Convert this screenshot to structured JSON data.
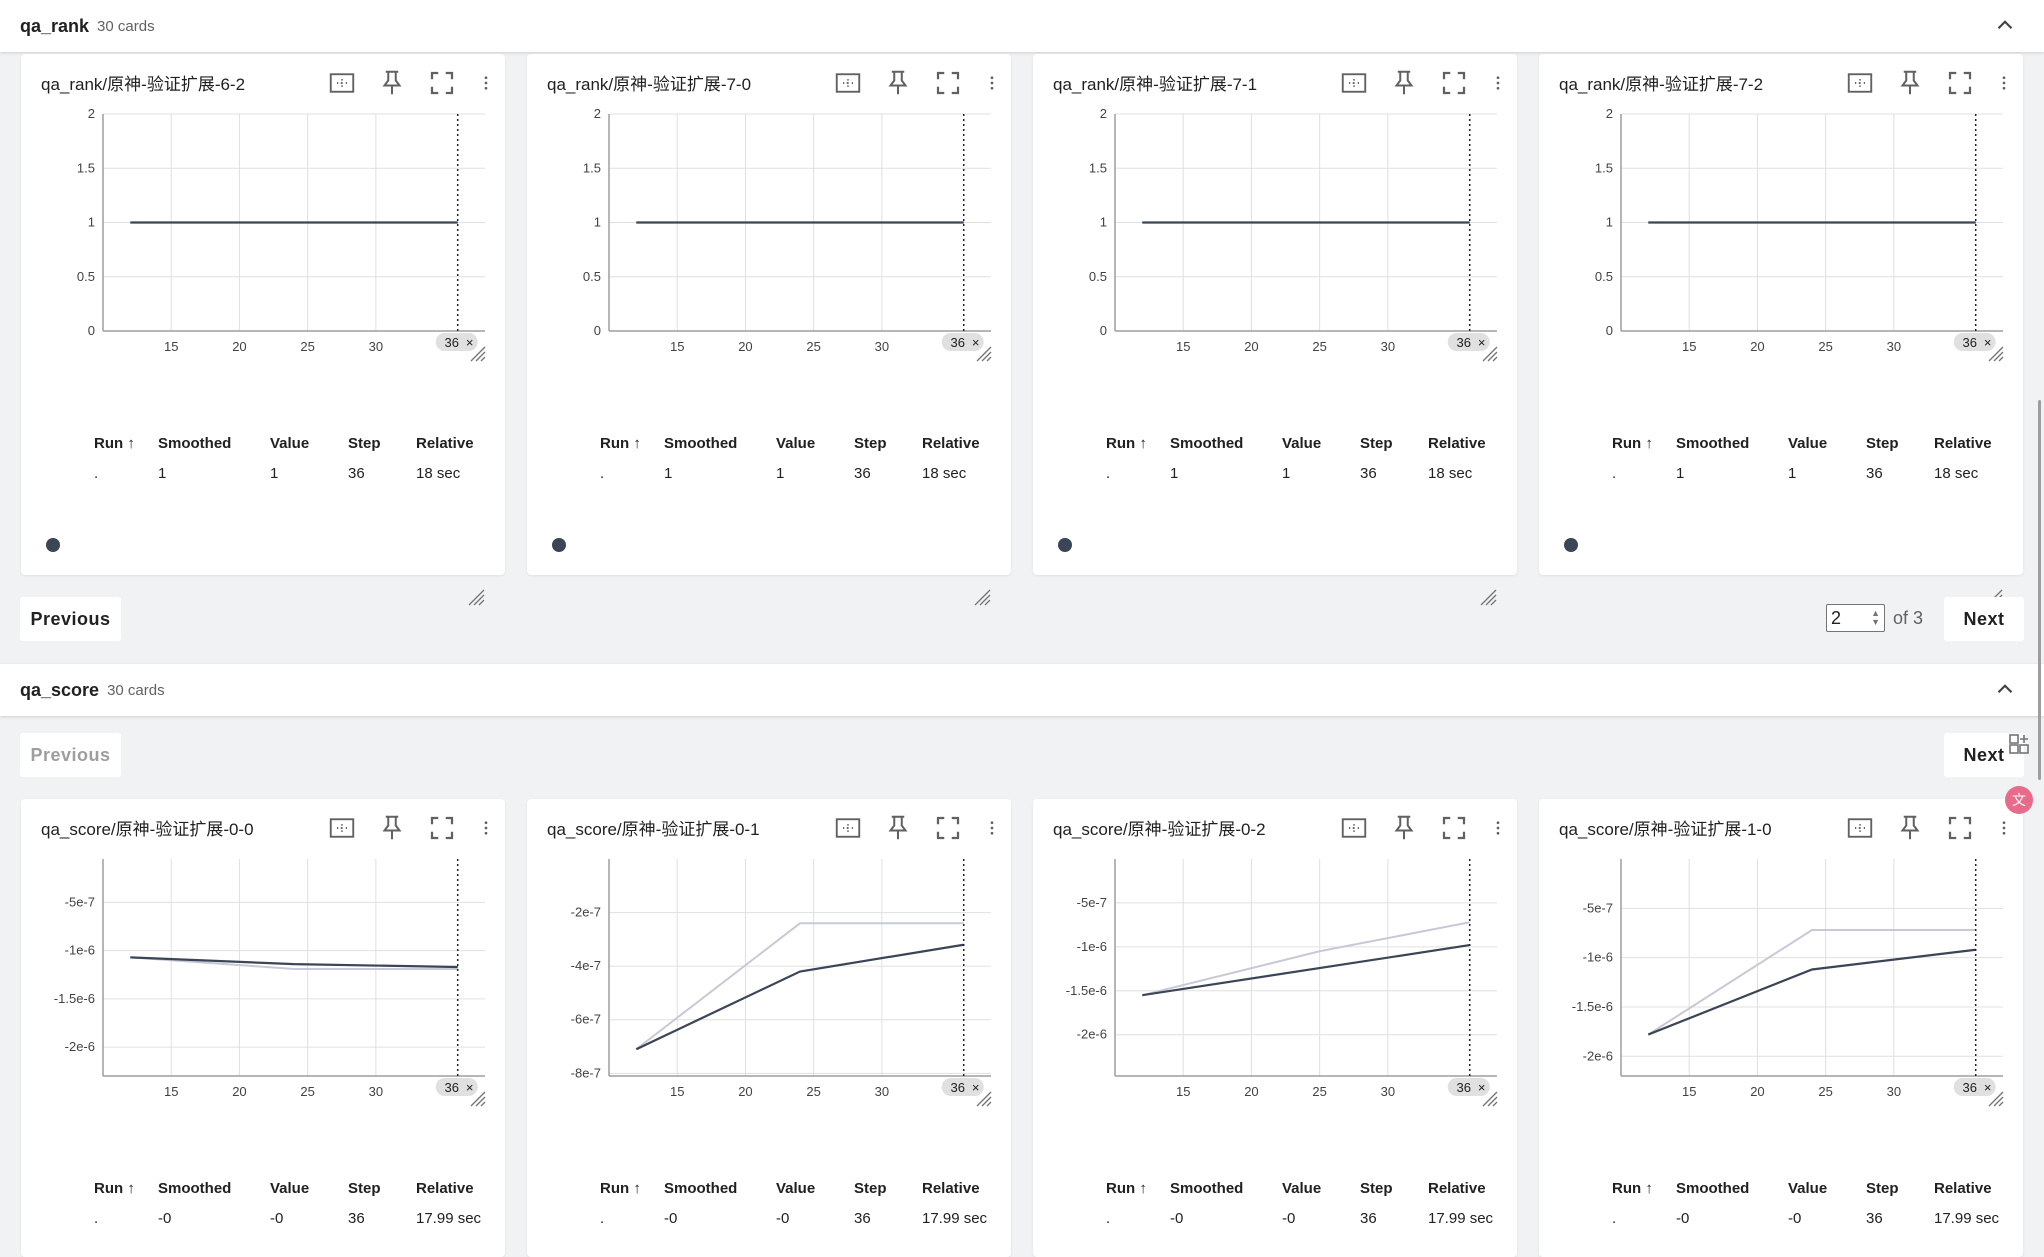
{
  "groups": [
    {
      "name": "qa_rank",
      "count_label": "30 cards",
      "pagination": {
        "prev_label": "Previous",
        "next_label": "Next",
        "page": "2",
        "of_label": "of 3"
      },
      "cards": [
        {
          "title": "qa_rank/原神-验证扩展-6-2",
          "run": {
            "name": ".",
            "smoothed": "1",
            "value": "1",
            "step": "36",
            "relative": "18 sec"
          },
          "chart": {
            "y_ticks": [
              "0",
              "0.5",
              "1",
              "1.5",
              "2"
            ],
            "y_range": [
              0,
              2
            ],
            "smoothed": [
              [
                12,
                1
              ],
              [
                36,
                1
              ]
            ],
            "raw": [
              [
                12,
                1
              ],
              [
                36,
                1
              ]
            ]
          }
        },
        {
          "title": "qa_rank/原神-验证扩展-7-0",
          "run": {
            "name": ".",
            "smoothed": "1",
            "value": "1",
            "step": "36",
            "relative": "18 sec"
          },
          "chart": {
            "y_ticks": [
              "0",
              "0.5",
              "1",
              "1.5",
              "2"
            ],
            "y_range": [
              0,
              2
            ],
            "smoothed": [
              [
                12,
                1
              ],
              [
                36,
                1
              ]
            ],
            "raw": [
              [
                12,
                1
              ],
              [
                36,
                1
              ]
            ]
          }
        },
        {
          "title": "qa_rank/原神-验证扩展-7-1",
          "run": {
            "name": ".",
            "smoothed": "1",
            "value": "1",
            "step": "36",
            "relative": "18 sec"
          },
          "chart": {
            "y_ticks": [
              "0",
              "0.5",
              "1",
              "1.5",
              "2"
            ],
            "y_range": [
              0,
              2
            ],
            "smoothed": [
              [
                12,
                1
              ],
              [
                36,
                1
              ]
            ],
            "raw": [
              [
                12,
                1
              ],
              [
                36,
                1
              ]
            ]
          }
        },
        {
          "title": "qa_rank/原神-验证扩展-7-2",
          "run": {
            "name": ".",
            "smoothed": "1",
            "value": "1",
            "step": "36",
            "relative": "18 sec"
          },
          "chart": {
            "y_ticks": [
              "0",
              "0.5",
              "1",
              "1.5",
              "2"
            ],
            "y_range": [
              0,
              2
            ],
            "smoothed": [
              [
                12,
                1
              ],
              [
                36,
                1
              ]
            ],
            "raw": [
              [
                12,
                1
              ],
              [
                36,
                1
              ]
            ]
          }
        }
      ]
    },
    {
      "name": "qa_score",
      "count_label": "30 cards",
      "pagination": {
        "prev_label": "Previous",
        "next_label": "Next"
      },
      "cards": [
        {
          "title": "qa_score/原神-验证扩展-0-0",
          "run": {
            "name": ".",
            "smoothed": "-0",
            "value": "-0",
            "step": "36",
            "relative": "17.99 sec"
          },
          "chart": {
            "y_ticks": [
              "-2e-6",
              "-1.5e-6",
              "-1e-6",
              "-5e-7"
            ],
            "y_tick_vals": [
              -2e-06,
              -1.5e-06,
              -1e-06,
              -5e-07
            ],
            "y_range": [
              -2.3e-06,
              -5e-08
            ],
            "smoothed": [
              [
                12,
                -1.07e-06
              ],
              [
                24,
                -1.14e-06
              ],
              [
                36,
                -1.17e-06
              ]
            ],
            "raw": [
              [
                12,
                -1.07e-06
              ],
              [
                24,
                -1.19e-06
              ],
              [
                36,
                -1.19e-06
              ]
            ]
          }
        },
        {
          "title": "qa_score/原神-验证扩展-0-1",
          "run": {
            "name": ".",
            "smoothed": "-0",
            "value": "-0",
            "step": "36",
            "relative": "17.99 sec"
          },
          "chart": {
            "y_ticks": [
              "-8e-7",
              "-6e-7",
              "-4e-7",
              "-2e-7"
            ],
            "y_tick_vals": [
              -8e-07,
              -6e-07,
              -4e-07,
              -2e-07
            ],
            "y_range": [
              -8.1e-07,
              0
            ],
            "smoothed": [
              [
                12,
                -7.1e-07
              ],
              [
                24,
                -4.2e-07
              ],
              [
                36,
                -3.2e-07
              ]
            ],
            "raw": [
              [
                12,
                -7.1e-07
              ],
              [
                24,
                -2.4e-07
              ],
              [
                36,
                -2.4e-07
              ]
            ]
          }
        },
        {
          "title": "qa_score/原神-验证扩展-0-2",
          "run": {
            "name": ".",
            "smoothed": "-0",
            "value": "-0",
            "step": "36",
            "relative": "17.99 sec"
          },
          "chart": {
            "y_ticks": [
              "-2e-6",
              "-1.5e-6",
              "-1e-6",
              "-5e-7"
            ],
            "y_tick_vals": [
              -2e-06,
              -1.5e-06,
              -1e-06,
              -5e-07
            ],
            "y_range": [
              -2.47e-06,
              0
            ],
            "smoothed": [
              [
                12,
                -1.55e-06
              ],
              [
                36,
                -9.8e-07
              ]
            ],
            "raw": [
              [
                12,
                -1.55e-06
              ],
              [
                25,
                -1.05e-06
              ],
              [
                36,
                -7.2e-07
              ]
            ]
          }
        },
        {
          "title": "qa_score/原神-验证扩展-1-0",
          "run": {
            "name": ".",
            "smoothed": "-0",
            "value": "-0",
            "step": "36",
            "relative": "17.99 sec"
          },
          "chart": {
            "y_ticks": [
              "-2e-6",
              "-1.5e-6",
              "-1e-6",
              "-5e-7"
            ],
            "y_tick_vals": [
              -2e-06,
              -1.5e-06,
              -1e-06,
              -5e-07
            ],
            "y_range": [
              -2.2e-06,
              0
            ],
            "smoothed": [
              [
                12,
                -1.78e-06
              ],
              [
                24,
                -1.12e-06
              ],
              [
                36,
                -9.2e-07
              ]
            ],
            "raw": [
              [
                12,
                -1.78e-06
              ],
              [
                24,
                -7.2e-07
              ],
              [
                36,
                -7.2e-07
              ]
            ]
          }
        }
      ]
    }
  ],
  "chart_common": {
    "x_ticks": [
      "15",
      "20",
      "25",
      "30"
    ],
    "x_tick_vals": [
      15,
      20,
      25,
      30
    ],
    "x_range": [
      10,
      38
    ],
    "step_marker": "36",
    "step_marker_value": 36
  },
  "table_headers": {
    "run": "Run ↑",
    "smoothed": "Smoothed",
    "value": "Value",
    "step": "Step",
    "relative": "Relative"
  },
  "colors": {
    "smoothed": "#3a4555",
    "raw": "#c7cad6",
    "grid": "#e0e0e0",
    "axis": "#9e9e9e"
  }
}
